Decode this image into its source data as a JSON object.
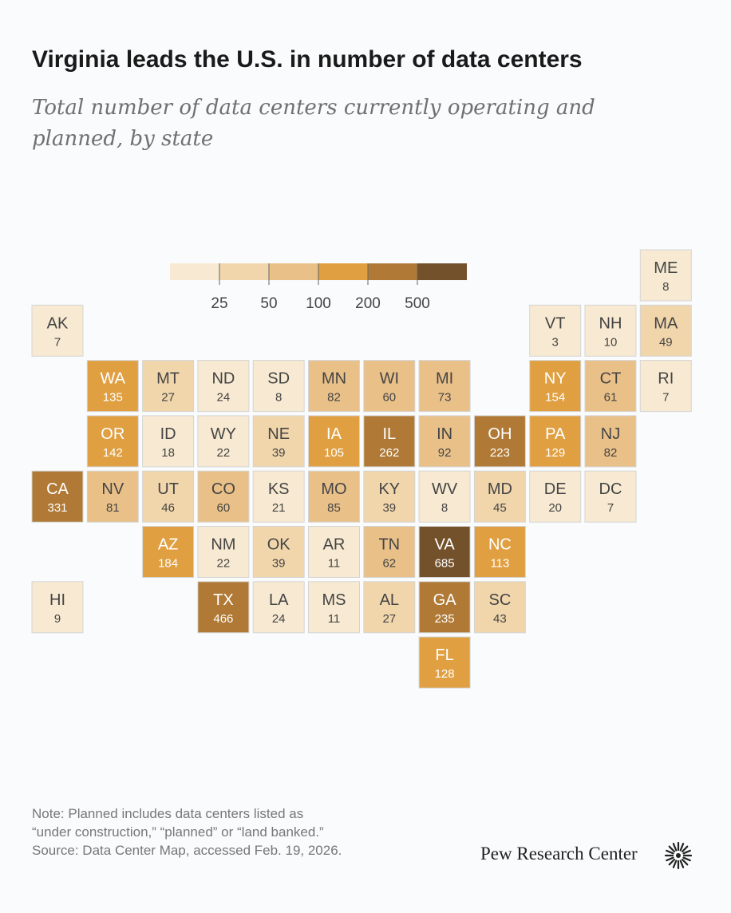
{
  "title": "Virginia leads the U.S. in number of data centers",
  "subtitle": "Total number of data centers currently operating and planned, by state",
  "legend": {
    "ticks": [
      25,
      50,
      100,
      200,
      500
    ],
    "colors": [
      "#f8ead2",
      "#f1d6ac",
      "#e9c088",
      "#e0a042",
      "#b07a36",
      "#73512a"
    ]
  },
  "rows": [
    [
      {
        "state": "ME",
        "value": 8
      }
    ],
    [
      {
        "state": "AK",
        "value": 7
      },
      {
        "state": "VT",
        "value": 3
      },
      {
        "state": "NH",
        "value": 10
      },
      {
        "state": "MA",
        "value": 49
      }
    ],
    [
      {
        "state": "WA",
        "value": 135
      },
      {
        "state": "MT",
        "value": 27
      },
      {
        "state": "ND",
        "value": 24
      },
      {
        "state": "SD",
        "value": 8
      },
      {
        "state": "MN",
        "value": 82
      },
      {
        "state": "WI",
        "value": 60
      },
      {
        "state": "MI",
        "value": 73
      },
      {
        "state": "NY",
        "value": 154
      },
      {
        "state": "CT",
        "value": 61
      },
      {
        "state": "RI",
        "value": 7
      }
    ],
    [
      {
        "state": "OR",
        "value": 142
      },
      {
        "state": "ID",
        "value": 18
      },
      {
        "state": "WY",
        "value": 22
      },
      {
        "state": "NE",
        "value": 39
      },
      {
        "state": "IA",
        "value": 105
      },
      {
        "state": "IL",
        "value": 262
      },
      {
        "state": "IN",
        "value": 92
      },
      {
        "state": "OH",
        "value": 223
      },
      {
        "state": "PA",
        "value": 129
      },
      {
        "state": "NJ",
        "value": 82
      }
    ],
    [
      {
        "state": "CA",
        "value": 331
      },
      {
        "state": "NV",
        "value": 81
      },
      {
        "state": "UT",
        "value": 46
      },
      {
        "state": "CO",
        "value": 60
      },
      {
        "state": "KS",
        "value": 21
      },
      {
        "state": "MO",
        "value": 85
      },
      {
        "state": "KY",
        "value": 39
      },
      {
        "state": "WV",
        "value": 8
      },
      {
        "state": "MD",
        "value": 45
      },
      {
        "state": "DE",
        "value": 20
      },
      {
        "state": "DC",
        "value": 7
      }
    ],
    [
      {
        "state": "AZ",
        "value": 184
      },
      {
        "state": "NM",
        "value": 22
      },
      {
        "state": "OK",
        "value": 39
      },
      {
        "state": "AR",
        "value": 11
      },
      {
        "state": "TN",
        "value": 62
      },
      {
        "state": "VA",
        "value": 685
      },
      {
        "state": "NC",
        "value": 113
      }
    ],
    [
      {
        "state": "HI",
        "value": 9
      },
      {
        "state": "TX",
        "value": 466
      },
      {
        "state": "LA",
        "value": 24
      },
      {
        "state": "MS",
        "value": 11
      },
      {
        "state": "AL",
        "value": 27
      },
      {
        "state": "GA",
        "value": 235
      },
      {
        "state": "SC",
        "value": 43
      }
    ],
    [
      {
        "state": "FL",
        "value": 128
      }
    ]
  ],
  "note": [
    "Note: Planned includes data centers listed as",
    "“under construction,” “planned” or “land banked.”"
  ],
  "source": "Source: Data Center Map, accessed Feb. 19, 2026.",
  "logo": "Pew Research Center"
}
